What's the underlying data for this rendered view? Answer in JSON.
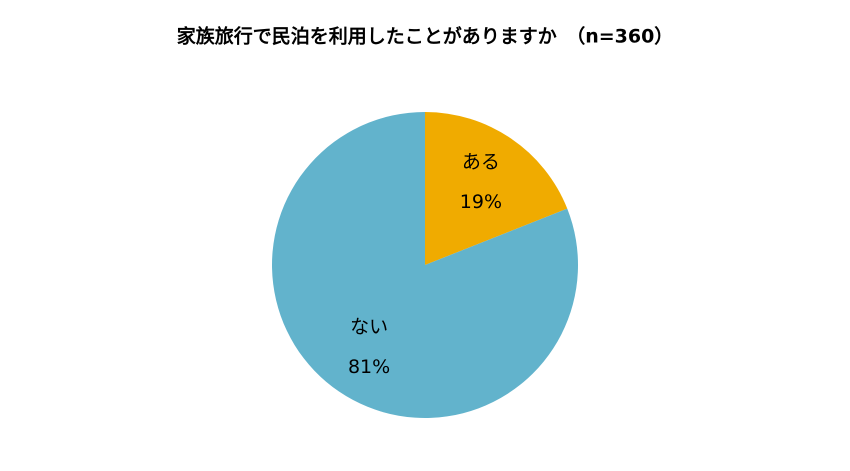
{
  "chart_data": {
    "type": "pie",
    "title": "家族旅行で民泊を利用したことがありますか　（n=360）",
    "categories": [
      "ある",
      "ない"
    ],
    "values": [
      19,
      81
    ],
    "value_labels": [
      "19%",
      "81%"
    ],
    "colors": [
      "#f0ab00",
      "#62b3cc"
    ]
  }
}
